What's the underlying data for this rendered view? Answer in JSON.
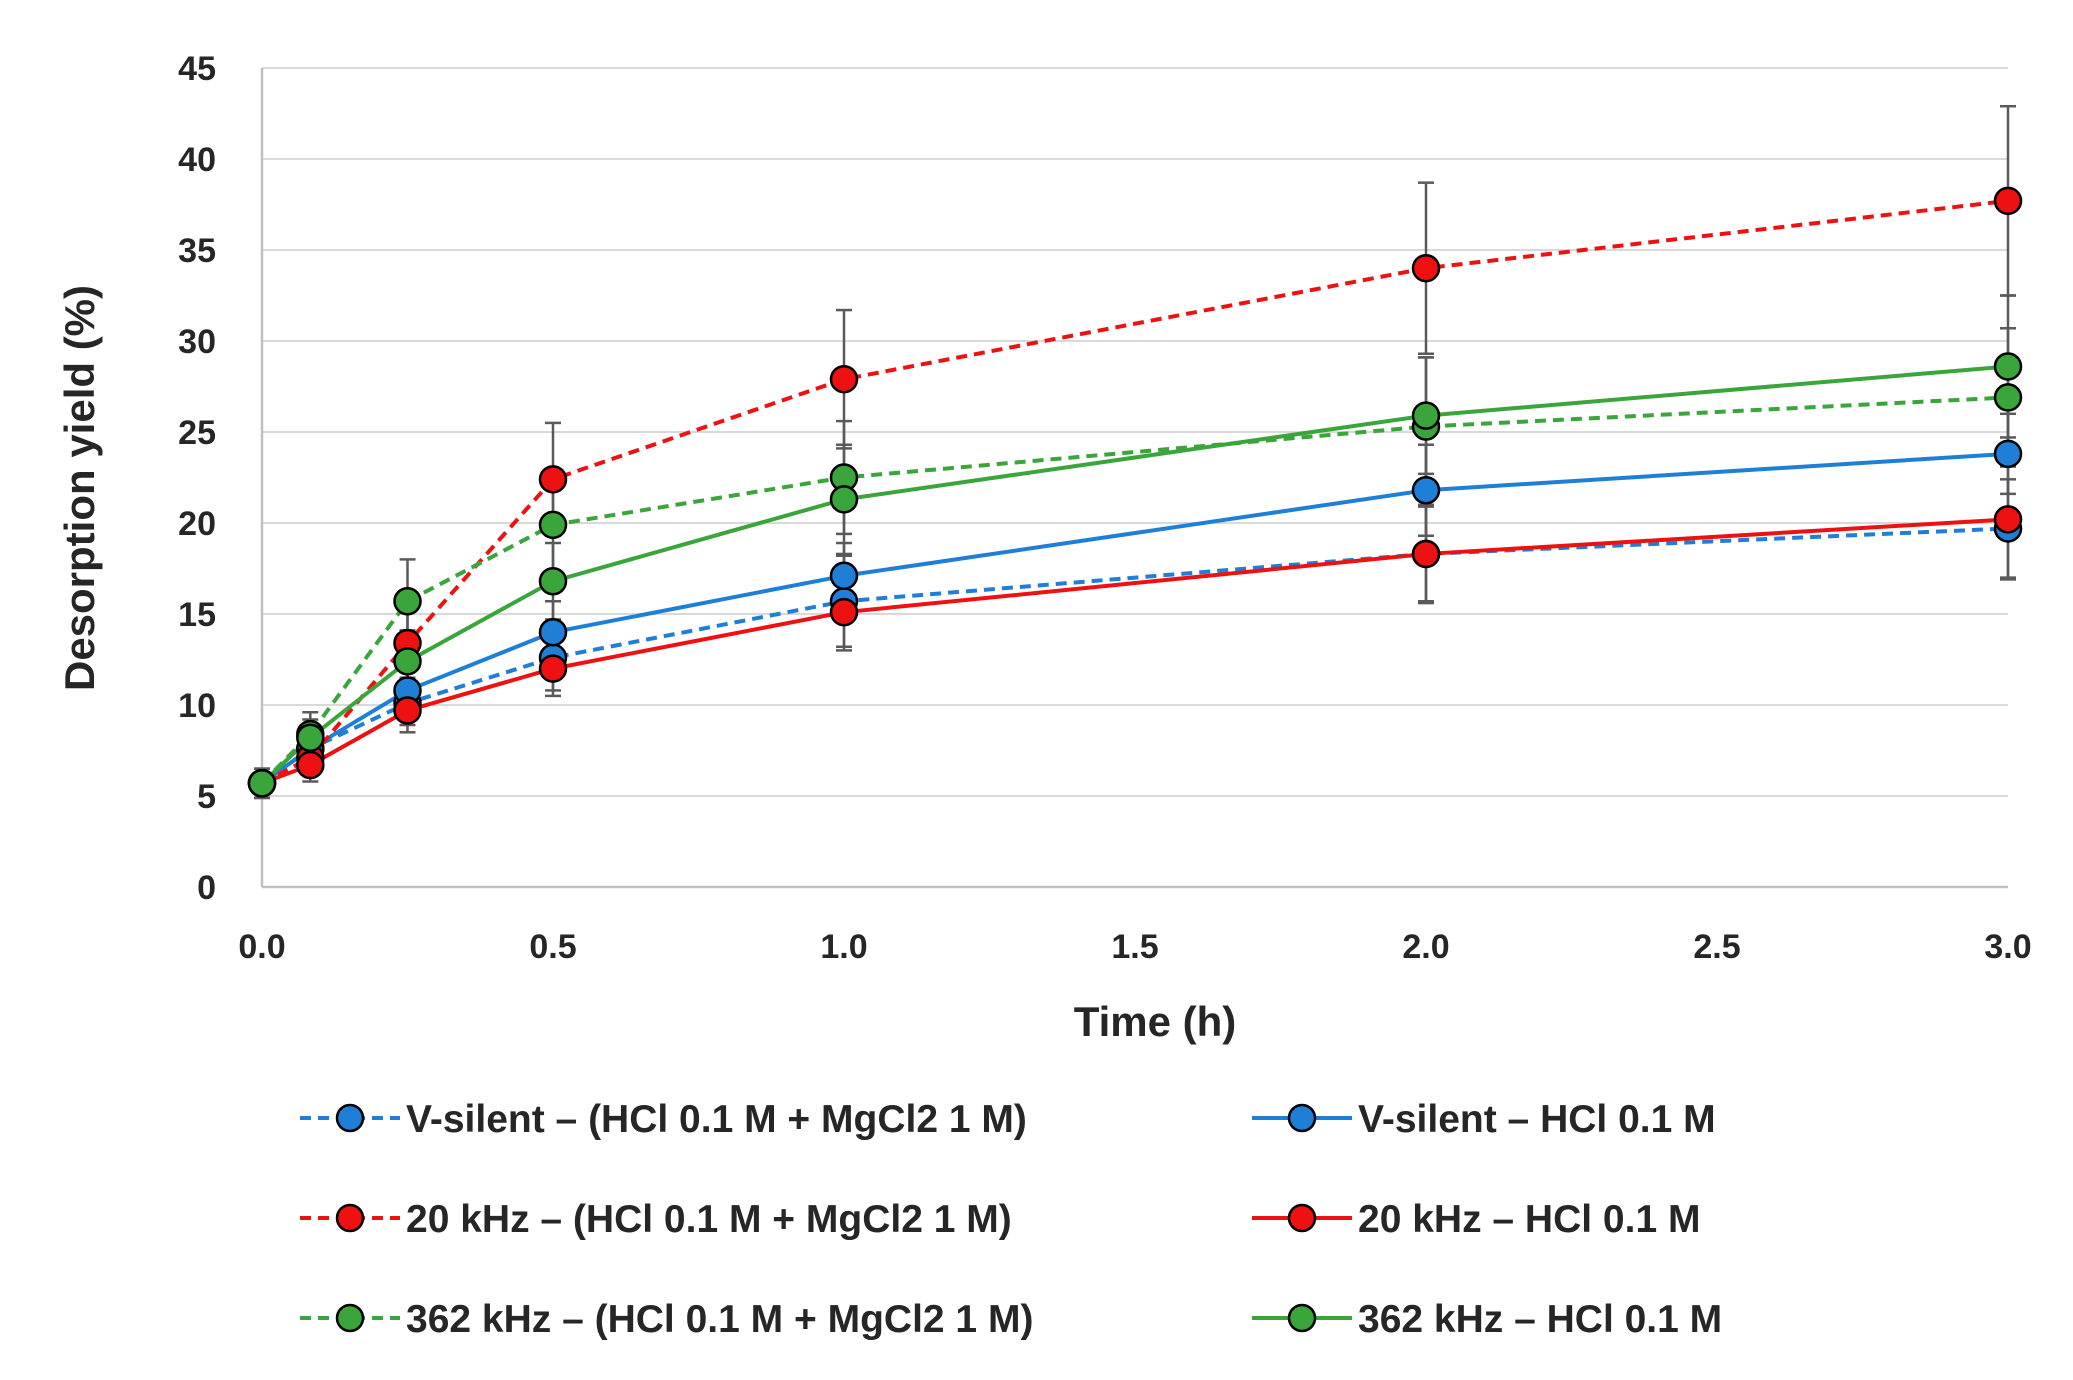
{
  "chart_data": {
    "type": "line",
    "title": "",
    "xlabel": "Time (h)",
    "ylabel": "Desorption yield (%)",
    "xlim": [
      0,
      3
    ],
    "ylim": [
      0,
      45
    ],
    "x_ticks": [
      "0.0",
      "0.5",
      "1.0",
      "1.5",
      "2.0",
      "2.5",
      "3.0"
    ],
    "y_ticks": [
      "0",
      "5",
      "10",
      "15",
      "20",
      "25",
      "30",
      "35",
      "40",
      "45"
    ],
    "grid": "horizontal",
    "legend_position": "bottom",
    "colors": {
      "blue": "#1f7fd6",
      "red": "#ee1111",
      "green": "#3aa53a",
      "error_bar": "#5a5a5a",
      "grid": "#d9d9d9",
      "axis": "#bfbfbf"
    },
    "series": [
      {
        "name": "V-silent – (HCl 0.1 M + MgCl2 1 M)",
        "color": "#1f7fd6",
        "style": "dashed",
        "x": [
          0,
          0.083,
          0.25,
          0.5,
          1,
          2,
          3
        ],
        "values": [
          5.7,
          7.6,
          10.1,
          12.6,
          15.7,
          18.3,
          19.7
        ],
        "error": [
          0.8,
          0.9,
          1.2,
          1.8,
          2.5,
          2.7,
          2.7
        ]
      },
      {
        "name": "V-silent – HCl 0.1 M",
        "color": "#1f7fd6",
        "style": "solid",
        "x": [
          0,
          0.083,
          0.25,
          0.5,
          1,
          2,
          3
        ],
        "values": [
          5.7,
          7.6,
          10.8,
          14.0,
          17.1,
          21.8,
          23.8
        ],
        "error": [
          0.8,
          0.9,
          1.3,
          1.7,
          1.8,
          2.5,
          2.2
        ]
      },
      {
        "name": "20 kHz – (HCl 0.1 M + MgCl2 1 M)",
        "color": "#ee1111",
        "style": "dashed",
        "x": [
          0,
          0.083,
          0.25,
          0.5,
          1,
          2,
          3
        ],
        "values": [
          5.7,
          7.1,
          13.4,
          22.4,
          27.9,
          34.0,
          37.7
        ],
        "error": [
          0.8,
          0.9,
          1.9,
          3.1,
          3.8,
          4.7,
          5.2
        ]
      },
      {
        "name": "20 kHz – HCl 0.1 M",
        "color": "#ee1111",
        "style": "solid",
        "x": [
          0,
          0.083,
          0.25,
          0.5,
          1,
          2,
          3
        ],
        "values": [
          5.7,
          6.7,
          9.7,
          12.0,
          15.1,
          18.3,
          20.2
        ],
        "error": [
          0.8,
          0.9,
          1.2,
          1.5,
          2.1,
          2.6,
          3.3
        ]
      },
      {
        "name": "362 kHz – (HCl 0.1 M + MgCl2 1 M)",
        "color": "#3aa53a",
        "style": "dashed",
        "x": [
          0,
          0.083,
          0.25,
          0.5,
          1,
          2,
          3
        ],
        "values": [
          5.7,
          8.4,
          15.7,
          19.9,
          22.5,
          25.3,
          26.9
        ],
        "error": [
          0.8,
          1.2,
          2.3,
          2.6,
          3.1,
          3.8,
          3.8
        ]
      },
      {
        "name": "362 kHz – HCl 0.1 M",
        "color": "#3aa53a",
        "style": "solid",
        "x": [
          0,
          0.083,
          0.25,
          0.5,
          1,
          2,
          3
        ],
        "values": [
          5.7,
          8.2,
          12.4,
          16.8,
          21.3,
          25.9,
          28.6
        ],
        "error": [
          0.8,
          1.0,
          1.7,
          2.1,
          3.0,
          3.2,
          3.9
        ]
      }
    ]
  }
}
